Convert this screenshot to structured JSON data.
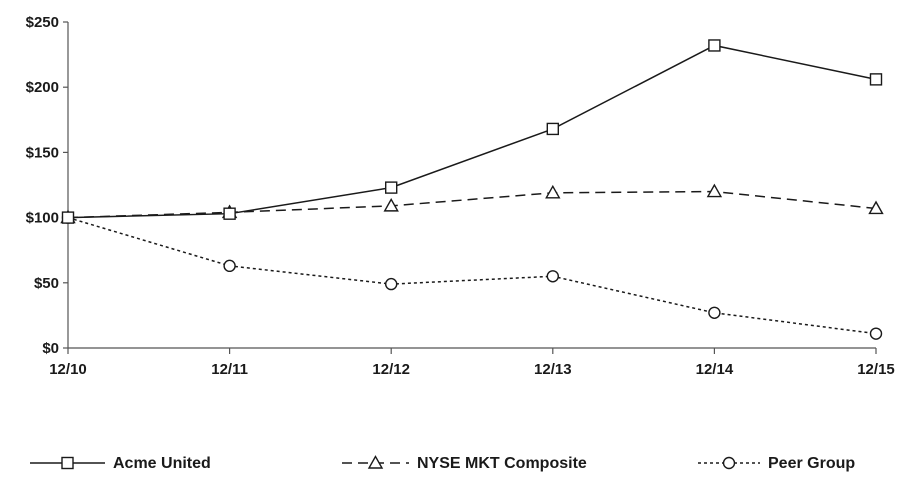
{
  "chart_data": {
    "type": "line",
    "title": "",
    "xlabel": "",
    "ylabel": "",
    "categories": [
      "12/10",
      "12/11",
      "12/12",
      "12/13",
      "12/14",
      "12/15"
    ],
    "ylim": [
      0,
      250
    ],
    "yticks": [
      0,
      50,
      100,
      150,
      200,
      250
    ],
    "ytick_labels": [
      "$0",
      "$50",
      "$100",
      "$150",
      "$200",
      "$250"
    ],
    "grid": false,
    "legend_position": "bottom",
    "series": [
      {
        "name": "Acme United",
        "marker": "square",
        "dash": "solid",
        "values": [
          100,
          103,
          123,
          168,
          232,
          206
        ]
      },
      {
        "name": "NYSE MKT Composite",
        "marker": "triangle",
        "dash": "dashed",
        "values": [
          100,
          104,
          109,
          119,
          120,
          107
        ]
      },
      {
        "name": "Peer Group",
        "marker": "circle",
        "dash": "dotted",
        "values": [
          100,
          63,
          49,
          55,
          27,
          11
        ]
      }
    ],
    "colors": {
      "line": "#1a1a1a",
      "background": "#ffffff"
    }
  }
}
